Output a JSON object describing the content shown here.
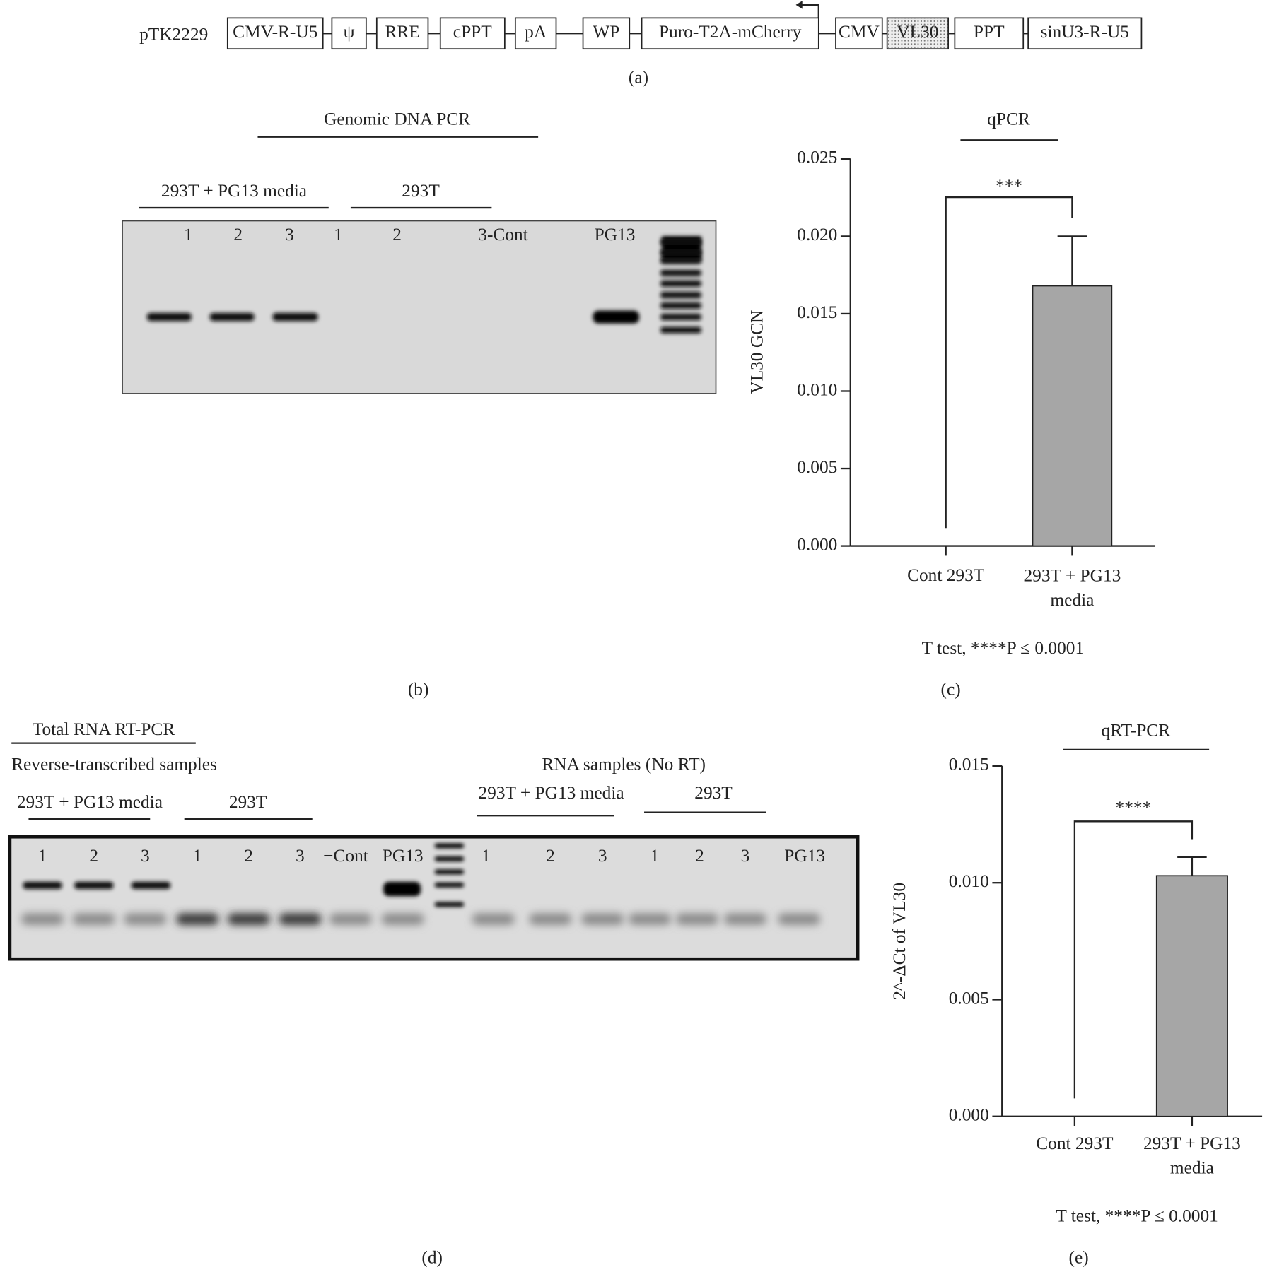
{
  "construct": {
    "name": "pTK2229",
    "elements": [
      "CMV-R-U5",
      "ψ",
      "RRE",
      "cPPT",
      "pA",
      "WP",
      "Puro-T2A-mCherry",
      "CMV",
      "VL30",
      "PPT",
      "sinU3-R-U5"
    ],
    "caption": "(a)"
  },
  "panel_b": {
    "title": "Genomic DNA PCR",
    "groups": [
      "293T + PG13 media",
      "293T"
    ],
    "lanes": [
      "1",
      "2",
      "3",
      "1",
      "2",
      "3-Cont",
      "PG13"
    ],
    "caption": "(b)"
  },
  "panel_d": {
    "title": "Total RNA RT-PCR",
    "subtitle_left": "Reverse-transcribed samples",
    "subtitle_right": "RNA samples (No RT)",
    "groups": [
      "293T + PG13 media",
      "293T",
      "293T + PG13 media",
      "293T"
    ],
    "lanes": [
      "1",
      "2",
      "3",
      "1",
      "2",
      "3",
      "−Cont",
      "PG13",
      "1",
      "2",
      "3",
      "1",
      "2",
      "3",
      "PG13"
    ],
    "caption": "(d)"
  },
  "chart_data": [
    {
      "type": "bar",
      "title": "qPCR",
      "y_label": "VL30 GCN",
      "categories": [
        "Cont 293T",
        "293T + PG13 media"
      ],
      "values": [
        0,
        0.0168
      ],
      "errors": [
        null,
        0.0032
      ],
      "color": "#a6a6a6",
      "ylim": [
        0,
        0.025
      ],
      "yticks": [
        {
          "value": 0,
          "label": "0.000"
        },
        0.005,
        {
          "value": 0.01,
          "label": "0.010"
        },
        0.015,
        {
          "value": 0.02,
          "label": "0.020"
        },
        0.025
      ],
      "significance": "***",
      "note": "T test, ****P ≤ 0.0001",
      "caption": "(c)"
    },
    {
      "type": "bar",
      "title": "qRT-PCR",
      "y_label": "2^-ΔCt of VL30",
      "categories": [
        "Cont 293T",
        "293T + PG13 media"
      ],
      "values": [
        0,
        0.0103
      ],
      "errors": [
        null,
        0.0008
      ],
      "color": "#a6a6a6",
      "ylim": [
        0,
        0.015
      ],
      "yticks": [
        {
          "value": 0,
          "label": "0.000"
        },
        0.005,
        {
          "value": 0.01,
          "label": "0.010"
        },
        0.015
      ],
      "significance": "****",
      "note": "T test, ****P ≤ 0.0001",
      "caption": "(e)"
    }
  ]
}
